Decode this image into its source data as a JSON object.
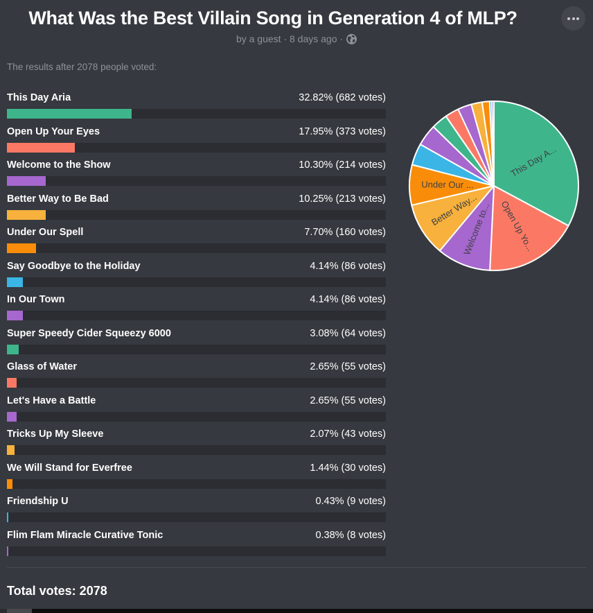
{
  "header": {
    "title": "What Was the Best Villain Song in Generation 4 of MLP?",
    "byline": "by a guest · 8 days ago ·",
    "menu_button_label": "more options"
  },
  "results_note": "The results after 2078 people voted:",
  "total_votes": {
    "label": "Total votes: 2078",
    "count": 2078
  },
  "colors": {
    "background": "#36393F",
    "bar_track": "#2B2D32",
    "text_primary": "#FFFFFF",
    "text_muted": "#8E9297",
    "divider": "#484B51",
    "pie_label_text": "#3E4145",
    "slice_stroke": "#FFFFFF",
    "green": "#3FB58C",
    "salmon": "#FB7964",
    "purple": "#A667CE",
    "yellow": "#F7B13C",
    "orange": "#F98D0A",
    "blue": "#3AB5E5"
  },
  "options": [
    {
      "label": "This Day Aria",
      "result_text": "32.82% (682 votes)",
      "pct": 32.82,
      "votes": 682,
      "color": "#3FB58C",
      "pie_label": "This Day A..."
    },
    {
      "label": "Open Up Your Eyes",
      "result_text": "17.95% (373 votes)",
      "pct": 17.95,
      "votes": 373,
      "color": "#FB7964",
      "pie_label": "Open Up Yo..."
    },
    {
      "label": "Welcome to the Show",
      "result_text": "10.30% (214 votes)",
      "pct": 10.3,
      "votes": 214,
      "color": "#A667CE",
      "pie_label": "Welcome to..."
    },
    {
      "label": "Better Way to Be Bad",
      "result_text": "10.25% (213 votes)",
      "pct": 10.25,
      "votes": 213,
      "color": "#F7B13C",
      "pie_label": "Better Way..."
    },
    {
      "label": "Under Our Spell",
      "result_text": "7.70% (160 votes)",
      "pct": 7.7,
      "votes": 160,
      "color": "#F98D0A",
      "pie_label": "Under Our ..."
    },
    {
      "label": "Say Goodbye to the Holiday",
      "result_text": "4.14% (86 votes)",
      "pct": 4.14,
      "votes": 86,
      "color": "#3AB5E5",
      "pie_label": null
    },
    {
      "label": "In Our Town",
      "result_text": "4.14% (86 votes)",
      "pct": 4.14,
      "votes": 86,
      "color": "#A667CE",
      "pie_label": null
    },
    {
      "label": "Super Speedy Cider Squeezy 6000",
      "result_text": "3.08% (64 votes)",
      "pct": 3.08,
      "votes": 64,
      "color": "#3FB58C",
      "pie_label": null
    },
    {
      "label": "Glass of Water",
      "result_text": "2.65% (55 votes)",
      "pct": 2.65,
      "votes": 55,
      "color": "#FB7964",
      "pie_label": null
    },
    {
      "label": "Let's Have a Battle",
      "result_text": "2.65% (55 votes)",
      "pct": 2.65,
      "votes": 55,
      "color": "#A667CE",
      "pie_label": null
    },
    {
      "label": "Tricks Up My Sleeve",
      "result_text": "2.07% (43 votes)",
      "pct": 2.07,
      "votes": 43,
      "color": "#F7B13C",
      "pie_label": null
    },
    {
      "label": "We Will Stand for Everfree",
      "result_text": "1.44% (30 votes)",
      "pct": 1.44,
      "votes": 30,
      "color": "#F98D0A",
      "pie_label": null
    },
    {
      "label": "Friendship U",
      "result_text": "0.43% (9 votes)",
      "pct": 0.43,
      "votes": 9,
      "color": "#3AB5E5",
      "pie_label": null
    },
    {
      "label": "Flim Flam Miracle Curative Tonic",
      "result_text": "0.38% (8 votes)",
      "pct": 0.38,
      "votes": 8,
      "color": "#A667CE",
      "pie_label": null
    }
  ],
  "chart_data": [
    {
      "type": "bar",
      "title": "What Was the Best Villain Song in Generation 4 of MLP?",
      "categories": [
        "This Day Aria",
        "Open Up Your Eyes",
        "Welcome to the Show",
        "Better Way to Be Bad",
        "Under Our Spell",
        "Say Goodbye to the Holiday",
        "In Our Town",
        "Super Speedy Cider Squeezy 6000",
        "Glass of Water",
        "Let's Have a Battle",
        "Tricks Up My Sleeve",
        "We Will Stand for Everfree",
        "Friendship U",
        "Flim Flam Miracle Curative Tonic"
      ],
      "series": [
        {
          "name": "percent",
          "values": [
            32.82,
            17.95,
            10.3,
            10.25,
            7.7,
            4.14,
            4.14,
            3.08,
            2.65,
            2.65,
            2.07,
            1.44,
            0.43,
            0.38
          ]
        },
        {
          "name": "votes",
          "values": [
            682,
            373,
            214,
            213,
            160,
            86,
            86,
            64,
            55,
            55,
            43,
            30,
            9,
            8
          ]
        }
      ],
      "xlabel": "",
      "ylabel": "",
      "xlim": [
        0,
        100
      ],
      "orientation": "horizontal",
      "total_votes": 2078
    },
    {
      "type": "pie",
      "labels": [
        "This Day Aria",
        "Open Up Your Eyes",
        "Welcome to the Show",
        "Better Way to Be Bad",
        "Under Our Spell",
        "Say Goodbye to the Holiday",
        "In Our Town",
        "Super Speedy Cider Squeezy 6000",
        "Glass of Water",
        "Let's Have a Battle",
        "Tricks Up My Sleeve",
        "We Will Stand for Everfree",
        "Friendship U",
        "Flim Flam Miracle Curative Tonic"
      ],
      "values": [
        32.82,
        17.95,
        10.3,
        10.25,
        7.7,
        4.14,
        4.14,
        3.08,
        2.65,
        2.65,
        2.07,
        1.44,
        0.43,
        0.38
      ],
      "visible_slice_labels": [
        "This Day A...",
        "Open Up Yo...",
        "Welcome to...",
        "Better Way...",
        "Under Our ..."
      ],
      "colors": [
        "#3FB58C",
        "#FB7964",
        "#A667CE",
        "#F7B13C",
        "#F98D0A",
        "#3AB5E5",
        "#A667CE",
        "#3FB58C",
        "#FB7964",
        "#A667CE",
        "#F7B13C",
        "#F98D0A",
        "#3AB5E5",
        "#A667CE"
      ],
      "start_angle": "12 o'clock, clockwise",
      "legend_position": "none"
    }
  ]
}
